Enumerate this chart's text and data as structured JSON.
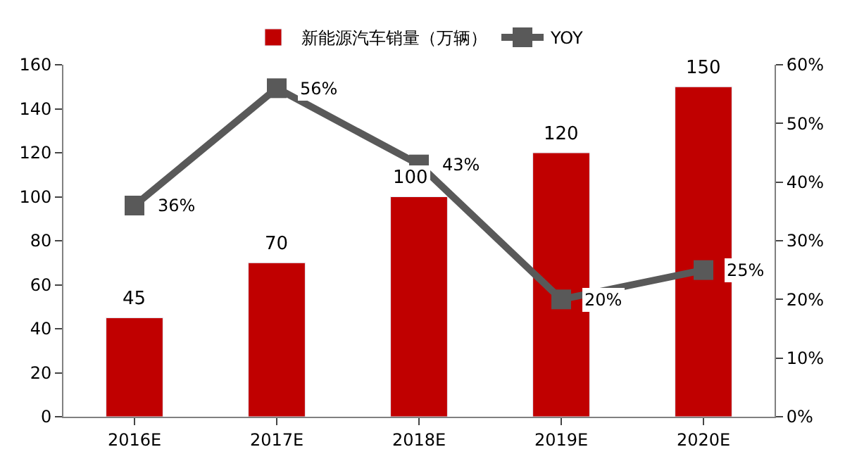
{
  "chart_data": {
    "type": "bar",
    "categories": [
      "2016E",
      "2017E",
      "2018E",
      "2019E",
      "2020E"
    ],
    "series": [
      {
        "name": "新能源汽车销量（万辆）",
        "color": "#c00000",
        "values": [
          45,
          70,
          100,
          120,
          150
        ],
        "value_labels": [
          "45",
          "70",
          "100",
          "120",
          "150"
        ]
      },
      {
        "name": "YOY",
        "type": "line",
        "axis": "y2",
        "color": "#595959",
        "marker": "square",
        "values": [
          36,
          56,
          43,
          20,
          25
        ],
        "value_labels": [
          "36%",
          "56%",
          "43%",
          "20%",
          "25%"
        ]
      }
    ],
    "ylim": [
      0,
      160
    ],
    "yticks": [
      0,
      20,
      40,
      60,
      80,
      100,
      120,
      140,
      160
    ],
    "y2lim": [
      0,
      60
    ],
    "y2ticks": [
      {
        "value": 0,
        "label": "0%"
      },
      {
        "value": 10,
        "label": "10%"
      },
      {
        "value": 20,
        "label": "20%"
      },
      {
        "value": 30,
        "label": "30%"
      },
      {
        "value": 40,
        "label": "40%"
      },
      {
        "value": 50,
        "label": "50%"
      },
      {
        "value": 60,
        "label": "60%"
      }
    ],
    "legend": "top"
  }
}
